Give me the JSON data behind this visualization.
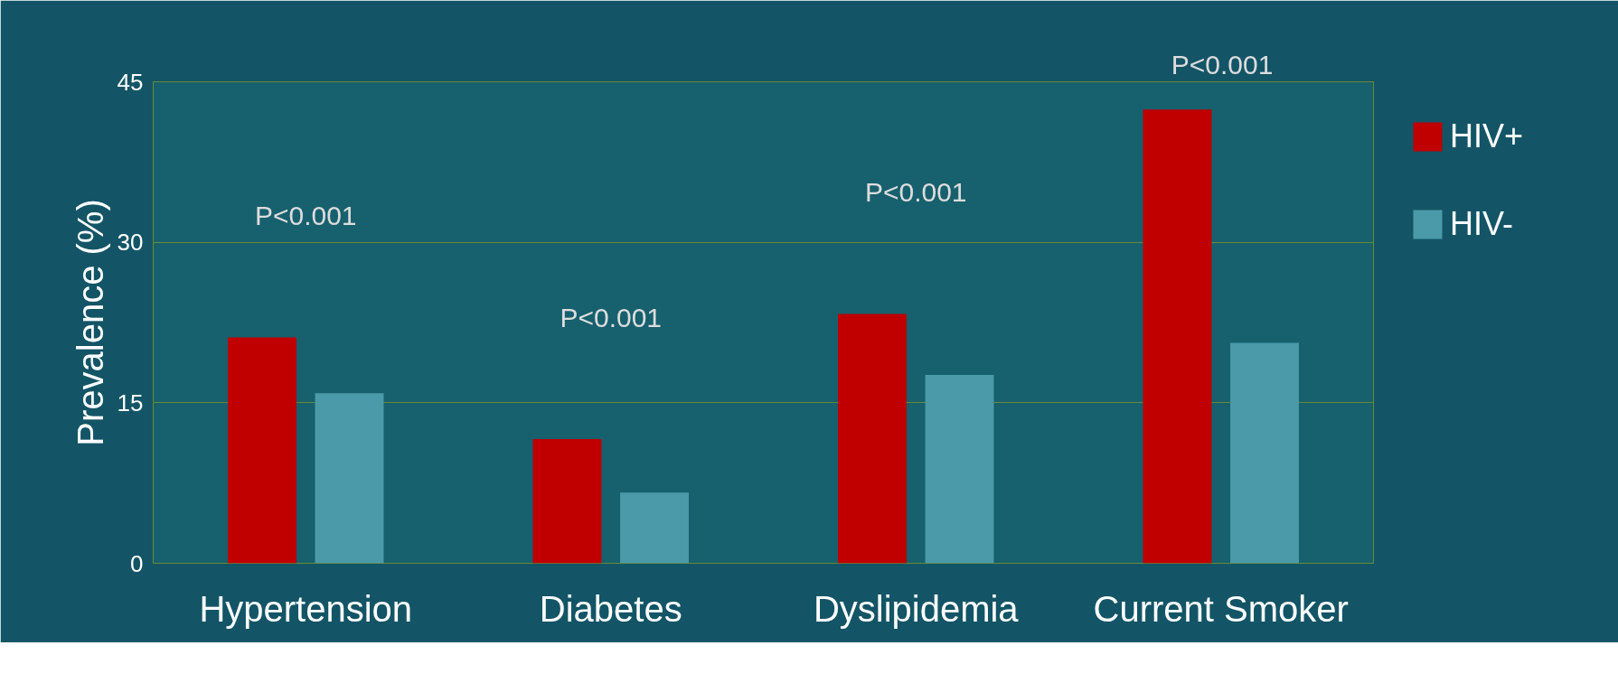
{
  "chart_data": {
    "type": "bar",
    "ylabel": "Prevalence (%)",
    "categories": [
      "Hypertension",
      "Diabetes",
      "Dyslipidemia",
      "Current Smoker"
    ],
    "series": [
      {
        "name": "HIV+",
        "color": "#c00000",
        "values": [
          21.1,
          11.6,
          23.3,
          42.4
        ]
      },
      {
        "name": "HIV-",
        "color": "#4a9aaa",
        "values": [
          15.9,
          6.6,
          17.6,
          20.6
        ]
      }
    ],
    "ylim": [
      0,
      45
    ],
    "yticks": [
      0,
      15,
      30,
      45
    ],
    "grid": "y",
    "legend": "right",
    "annotations": [
      "P<0.001",
      "P<0.001",
      "P<0.001",
      "P<0.001"
    ]
  }
}
